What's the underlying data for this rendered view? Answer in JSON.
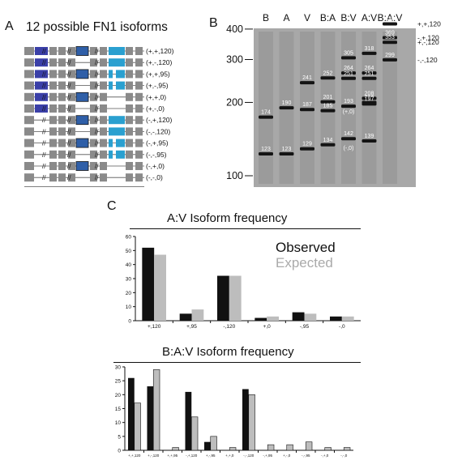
{
  "panels": {
    "a": {
      "label": "A",
      "title": "12 possible FN1 isoforms",
      "rows": [
        {
          "label": "(+,+,120)",
          "eiiib": true,
          "eiiia": true,
          "v": "120"
        },
        {
          "label": "(+,-,120)",
          "eiiib": true,
          "eiiia": false,
          "v": "120"
        },
        {
          "label": "(+,+,95)",
          "eiiib": true,
          "eiiia": true,
          "v": "95"
        },
        {
          "label": "(+,-,95)",
          "eiiib": true,
          "eiiia": false,
          "v": "95"
        },
        {
          "label": "(+,+,0)",
          "eiiib": true,
          "eiiia": true,
          "v": "0"
        },
        {
          "label": "(+,-,0)",
          "eiiib": true,
          "eiiia": false,
          "v": "0"
        },
        {
          "label": "(-,+,120)",
          "eiiib": false,
          "eiiia": true,
          "v": "120"
        },
        {
          "label": "(-,-,120)",
          "eiiib": false,
          "eiiia": false,
          "v": "120"
        },
        {
          "label": "(-,+,95)",
          "eiiib": false,
          "eiiia": true,
          "v": "95"
        },
        {
          "label": "(-,-,95)",
          "eiiib": false,
          "eiiia": false,
          "v": "95"
        },
        {
          "label": "(-,+,0)",
          "eiiib": false,
          "eiiia": true,
          "v": "0"
        },
        {
          "label": "(-,-,0)",
          "eiiib": false,
          "eiiia": false,
          "v": "0"
        }
      ],
      "colors": {
        "exon": "#8a8a8a",
        "eiiib": "#3a3fa8",
        "eiiia": "#2f5fa8",
        "v": "#2aa0d0"
      }
    },
    "b": {
      "label": "B",
      "lanes": [
        "B",
        "A",
        "V",
        "B:A",
        "B:V",
        "A:V",
        "B:A:V"
      ],
      "markers": [
        {
          "label": "400",
          "bp": 400
        },
        {
          "label": "300",
          "bp": 300
        },
        {
          "label": "200",
          "bp": 200
        },
        {
          "label": "100",
          "bp": 100
        }
      ],
      "bands": [
        {
          "lane": 0,
          "bp": 174,
          "label": "174"
        },
        {
          "lane": 0,
          "bp": 123,
          "label": "123"
        },
        {
          "lane": 1,
          "bp": 190,
          "label": "190"
        },
        {
          "lane": 1,
          "bp": 123,
          "label": "123"
        },
        {
          "lane": 2,
          "bp": 241,
          "label": "241"
        },
        {
          "lane": 2,
          "bp": 187,
          "label": "187"
        },
        {
          "lane": 2,
          "bp": 129,
          "label": "129"
        },
        {
          "lane": 3,
          "bp": 252,
          "label": "252"
        },
        {
          "lane": 3,
          "bp": 201,
          "label": "201"
        },
        {
          "lane": 3,
          "bp": 185,
          "label": "185"
        },
        {
          "lane": 3,
          "bp": 134,
          "label": "134"
        },
        {
          "lane": 4,
          "bp": 305,
          "label": "305"
        },
        {
          "lane": 4,
          "bp": 264,
          "label": "264"
        },
        {
          "lane": 4,
          "bp": 251,
          "label": "251"
        },
        {
          "lane": 4,
          "bp": 193,
          "label": "193"
        },
        {
          "lane": 4,
          "bp": 142,
          "label": "142"
        },
        {
          "lane": 5,
          "bp": 318,
          "label": "318"
        },
        {
          "lane": 5,
          "bp": 264,
          "label": "264"
        },
        {
          "lane": 5,
          "bp": 251,
          "label": "251"
        },
        {
          "lane": 5,
          "bp": 200,
          "label": "200"
        },
        {
          "lane": 5,
          "bp": 208,
          "label": "208"
        },
        {
          "lane": 5,
          "bp": 197,
          "label": "197"
        },
        {
          "lane": 5,
          "bp": 139,
          "label": "139"
        },
        {
          "lane": 6,
          "bp": 420,
          "label": "420"
        },
        {
          "lane": 6,
          "bp": 369,
          "label": "369"
        },
        {
          "lane": 6,
          "bp": 353,
          "label": "353"
        },
        {
          "lane": 6,
          "bp": 299,
          "label": "299"
        }
      ],
      "sub_labels": [
        {
          "lane": 4,
          "bp": 180,
          "label": "(+,0)"
        },
        {
          "lane": 4,
          "bp": 128,
          "label": "(-,0)"
        }
      ],
      "right_labels": [
        {
          "label": "+,+,120",
          "bp": 420
        },
        {
          "label": "-,+,120",
          "bp": 369
        },
        {
          "label": "+,-,120",
          "bp": 353
        },
        {
          "label": "-,-,120",
          "bp": 299
        }
      ]
    },
    "c": {
      "label": "C",
      "legend": {
        "observed": "Observed",
        "expected": "Expected"
      },
      "colors": {
        "observed": "#111111",
        "expected": "#bdbdbd"
      }
    }
  },
  "chart_data": [
    {
      "type": "bar",
      "title": "A:V Isoform frequency",
      "categories": [
        "+,120",
        "+,95",
        "-,120",
        "+,0",
        "-,95",
        "-,0"
      ],
      "series": [
        {
          "name": "Observed",
          "values": [
            52,
            5,
            32,
            2,
            6,
            3
          ]
        },
        {
          "name": "Expected",
          "values": [
            47,
            8,
            32,
            3,
            5,
            3
          ]
        }
      ],
      "ylim": [
        0,
        60
      ],
      "yticks": [
        0,
        10,
        20,
        30,
        40,
        50,
        60
      ]
    },
    {
      "type": "bar",
      "title": "B:A:V Isoform frequency",
      "categories": [
        "+,+,120",
        "+,-,120",
        "+,+,95",
        "-,+,120",
        "+,-,95",
        "+,+,0",
        "-,-,120",
        "-,+,95",
        "+,-,0",
        "-,-,95",
        "-,+,0",
        "-,-,0"
      ],
      "series": [
        {
          "name": "Observed",
          "values": [
            26,
            23,
            0,
            21,
            3,
            0,
            22,
            0,
            0,
            0,
            0,
            0
          ]
        },
        {
          "name": "Expected",
          "values": [
            17,
            29,
            1,
            12,
            5,
            1,
            20,
            2,
            2,
            3,
            1,
            1
          ]
        }
      ],
      "ylim": [
        0,
        30
      ],
      "yticks": [
        0,
        5,
        10,
        15,
        20,
        25,
        30
      ]
    }
  ]
}
